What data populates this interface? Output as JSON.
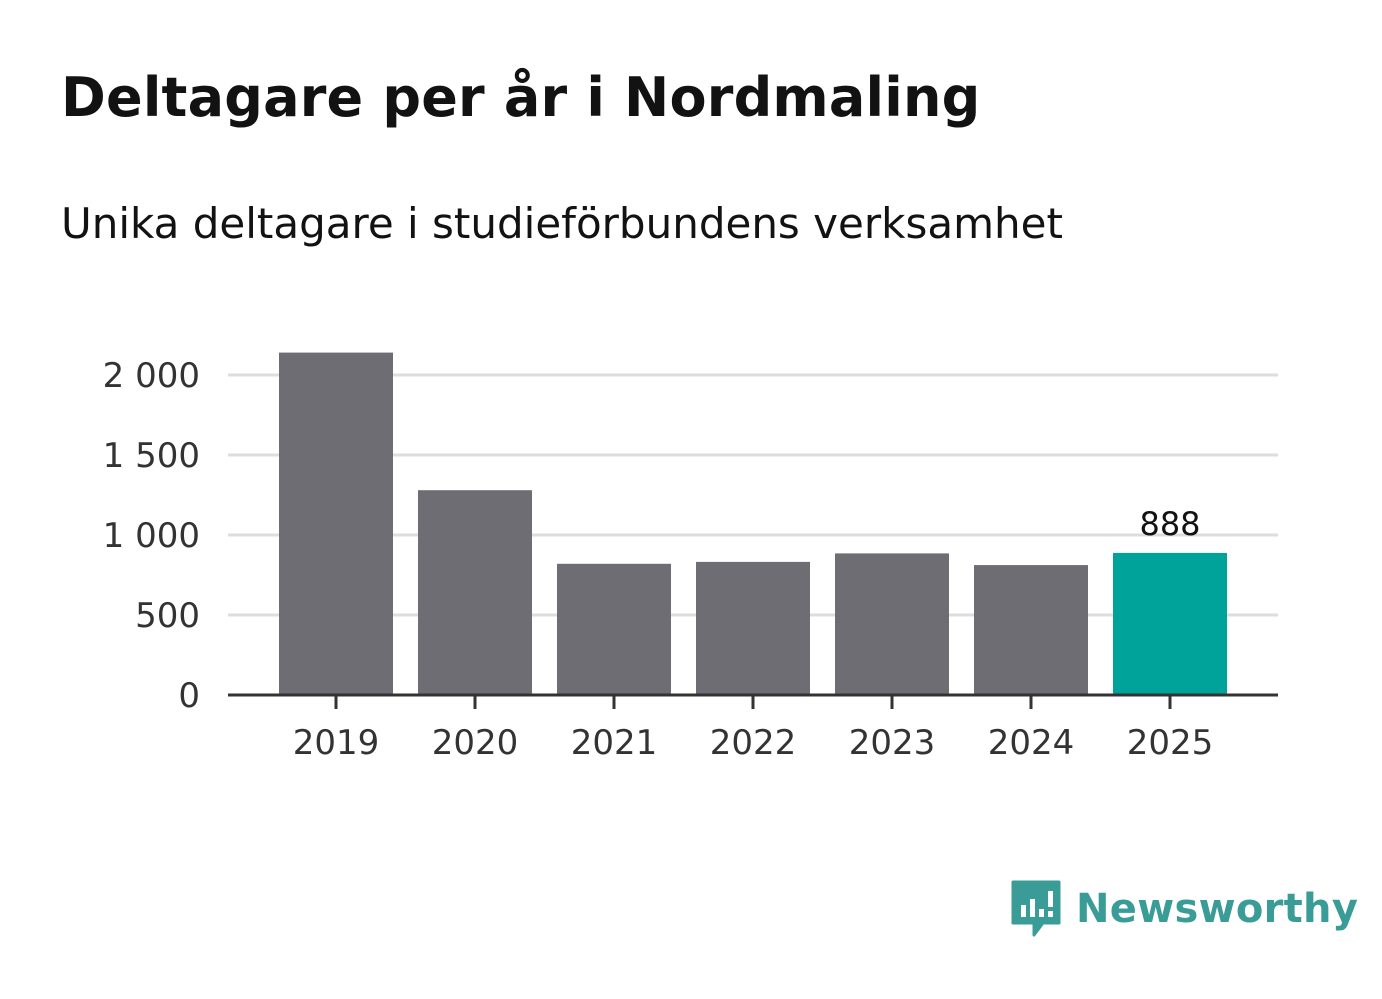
{
  "header": {
    "title": "Deltagare per år i Nordmaling",
    "subtitle": "Unika deltagare i studieförbundens verksamhet"
  },
  "brand": {
    "name": "Newsworthy",
    "color": "#3a9c96"
  },
  "colors": {
    "bar": "#6e6d73",
    "highlight": "#00a39a",
    "grid": "#dddddd",
    "axis": "#333333"
  },
  "chart_data": {
    "type": "bar",
    "title": "Deltagare per år i Nordmaling",
    "subtitle": "Unika deltagare i studieförbundens verksamhet",
    "xlabel": "",
    "ylabel": "",
    "categories": [
      "2019",
      "2020",
      "2021",
      "2022",
      "2023",
      "2024",
      "2025"
    ],
    "values": [
      2140,
      1280,
      820,
      832,
      885,
      812,
      888
    ],
    "highlight_index": 6,
    "data_labels": [
      {
        "index": 6,
        "text": "888"
      }
    ],
    "ylim": [
      0,
      2150
    ],
    "yticks": [
      {
        "value": 0,
        "label": "0"
      },
      {
        "value": 500,
        "label": "500"
      },
      {
        "value": 1000,
        "label": "1 000"
      },
      {
        "value": 1500,
        "label": "1 500"
      },
      {
        "value": 2000,
        "label": "2 000"
      }
    ],
    "grid": true,
    "legend": "none"
  }
}
